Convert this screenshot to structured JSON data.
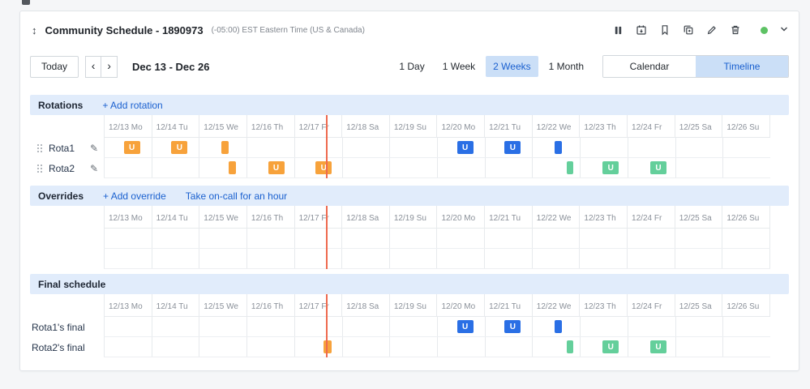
{
  "colors": {
    "accent_bg": "#cbdff7",
    "accent_text": "#1a60cf",
    "band_bg": "#e1ecfb",
    "orange": "#f7a23b",
    "blue": "#2a6fe5",
    "green": "#64cf9b",
    "now_line": "#ee6a4f",
    "status_green": "#5dc264"
  },
  "schedule": {
    "title": "Community Schedule - 1890973",
    "timezone": "(-05:00) EST Eastern Time (US & Canada)"
  },
  "header_icons": [
    "pause-icon",
    "calendar-export-icon",
    "bookmark-add-icon",
    "copy-icon",
    "edit-icon",
    "delete-icon",
    "status-dot",
    "collapse-chevron-icon"
  ],
  "toolbar": {
    "today_label": "Today",
    "prev_icon": "‹",
    "next_icon": "›",
    "range_label": "Dec 13 - Dec 26",
    "zoom_options": [
      "1 Day",
      "1 Week",
      "2 Weeks",
      "1 Month"
    ],
    "zoom_selected": "2 Weeks",
    "view_options": [
      "Calendar",
      "Timeline"
    ],
    "view_selected": "Timeline"
  },
  "dates": [
    "12/13 Mo",
    "12/14 Tu",
    "12/15 We",
    "12/16 Th",
    "12/17 Fr",
    "12/18 Sa",
    "12/19 Su",
    "12/20 Mo",
    "12/21 Tu",
    "12/22 We",
    "12/23 Th",
    "12/24 Fr",
    "12/25 Sa",
    "12/26 Su"
  ],
  "now_marker": {
    "position_cols": 4.66
  },
  "sections": {
    "rotations": {
      "title": "Rotations",
      "add_label": "+ Add rotation",
      "rows": [
        {
          "type": "rotation",
          "label": "Rota1",
          "badges": [
            {
              "c": 0,
              "x": 0.42,
              "w": 0.34,
              "color": "orange",
              "label": "U"
            },
            {
              "c": 1,
              "x": 0.42,
              "w": 0.34,
              "color": "orange",
              "label": "U"
            },
            {
              "c": 2,
              "x": 0.47,
              "w": 0.15,
              "color": "orange",
              "label": ""
            },
            {
              "c": 7,
              "x": 0.42,
              "w": 0.34,
              "color": "blue",
              "label": "U"
            },
            {
              "c": 8,
              "x": 0.42,
              "w": 0.34,
              "color": "blue",
              "label": "U"
            },
            {
              "c": 9,
              "x": 0.47,
              "w": 0.15,
              "color": "blue",
              "label": ""
            }
          ]
        },
        {
          "type": "rotation",
          "label": "Rota2",
          "badges": [
            {
              "c": 2,
              "x": 0.62,
              "w": 0.15,
              "color": "orange",
              "label": ""
            },
            {
              "c": 3,
              "x": 0.45,
              "w": 0.34,
              "color": "orange",
              "label": "U"
            },
            {
              "c": 4,
              "x": 0.45,
              "w": 0.34,
              "color": "orange",
              "label": "U"
            },
            {
              "c": 9,
              "x": 0.72,
              "w": 0.15,
              "color": "green",
              "label": ""
            },
            {
              "c": 10,
              "x": 0.48,
              "w": 0.34,
              "color": "green",
              "label": "U"
            },
            {
              "c": 11,
              "x": 0.48,
              "w": 0.34,
              "color": "green",
              "label": "U"
            }
          ]
        }
      ]
    },
    "overrides": {
      "title": "Overrides",
      "add_label": "+ Add override",
      "take_label": "Take on-call for an hour",
      "rows": [
        {
          "type": "empty",
          "label": "",
          "badges": []
        },
        {
          "type": "empty",
          "label": "",
          "badges": []
        }
      ]
    },
    "final": {
      "title": "Final schedule",
      "rows": [
        {
          "type": "final",
          "label": "Rota1's final",
          "badges": [
            {
              "c": 7,
              "x": 0.42,
              "w": 0.34,
              "color": "blue",
              "label": "U"
            },
            {
              "c": 8,
              "x": 0.42,
              "w": 0.34,
              "color": "blue",
              "label": "U"
            },
            {
              "c": 9,
              "x": 0.47,
              "w": 0.15,
              "color": "blue",
              "label": ""
            }
          ]
        },
        {
          "type": "final",
          "label": "Rota2's final",
          "badges": [
            {
              "c": 4,
              "x": 0.62,
              "w": 0.16,
              "color": "orange",
              "label": ""
            },
            {
              "c": 9,
              "x": 0.72,
              "w": 0.15,
              "color": "green",
              "label": ""
            },
            {
              "c": 10,
              "x": 0.48,
              "w": 0.34,
              "color": "green",
              "label": "U"
            },
            {
              "c": 11,
              "x": 0.48,
              "w": 0.34,
              "color": "green",
              "label": "U"
            }
          ]
        }
      ]
    }
  }
}
